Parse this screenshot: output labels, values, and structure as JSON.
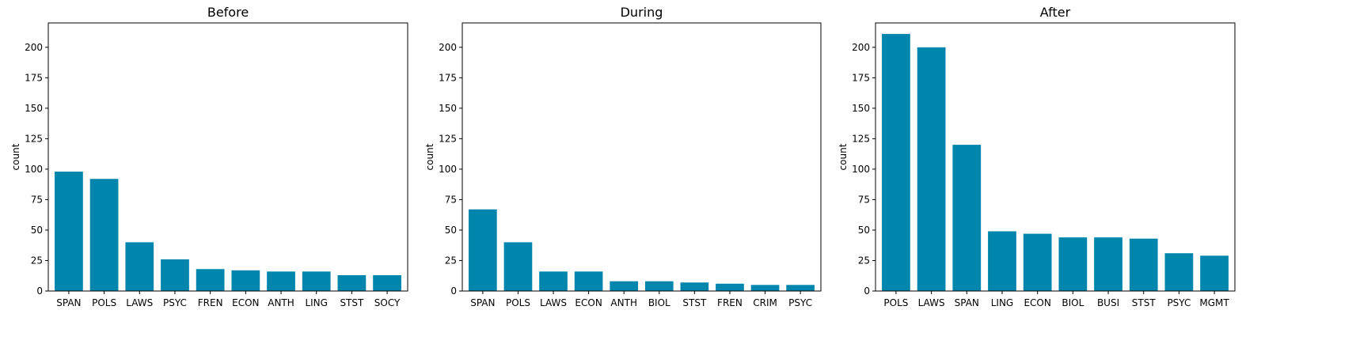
{
  "bar_color": "#0086ad",
  "chart_data": [
    {
      "type": "bar",
      "title": "Before",
      "xlabel": "",
      "ylabel": "count",
      "ylim": [
        0,
        220
      ],
      "yticks": [
        0,
        25,
        50,
        75,
        100,
        125,
        150,
        175,
        200
      ],
      "categories": [
        "SPAN",
        "POLS",
        "LAWS",
        "PSYC",
        "FREN",
        "ECON",
        "ANTH",
        "LING",
        "STST",
        "SOCY"
      ],
      "values": [
        98,
        92,
        40,
        26,
        18,
        17,
        16,
        16,
        13,
        13
      ]
    },
    {
      "type": "bar",
      "title": "During",
      "xlabel": "",
      "ylabel": "count",
      "ylim": [
        0,
        220
      ],
      "yticks": [
        0,
        25,
        50,
        75,
        100,
        125,
        150,
        175,
        200
      ],
      "categories": [
        "SPAN",
        "POLS",
        "LAWS",
        "ECON",
        "ANTH",
        "BIOL",
        "STST",
        "FREN",
        "CRIM",
        "PSYC"
      ],
      "values": [
        67,
        40,
        16,
        16,
        8,
        8,
        7,
        6,
        5,
        5
      ]
    },
    {
      "type": "bar",
      "title": "After",
      "xlabel": "",
      "ylabel": "count",
      "ylim": [
        0,
        220
      ],
      "yticks": [
        0,
        25,
        50,
        75,
        100,
        125,
        150,
        175,
        200
      ],
      "categories": [
        "POLS",
        "LAWS",
        "SPAN",
        "LING",
        "ECON",
        "BIOL",
        "BUSI",
        "STST",
        "PSYC",
        "MGMT"
      ],
      "values": [
        211,
        200,
        120,
        49,
        47,
        44,
        44,
        43,
        31,
        29
      ]
    }
  ]
}
